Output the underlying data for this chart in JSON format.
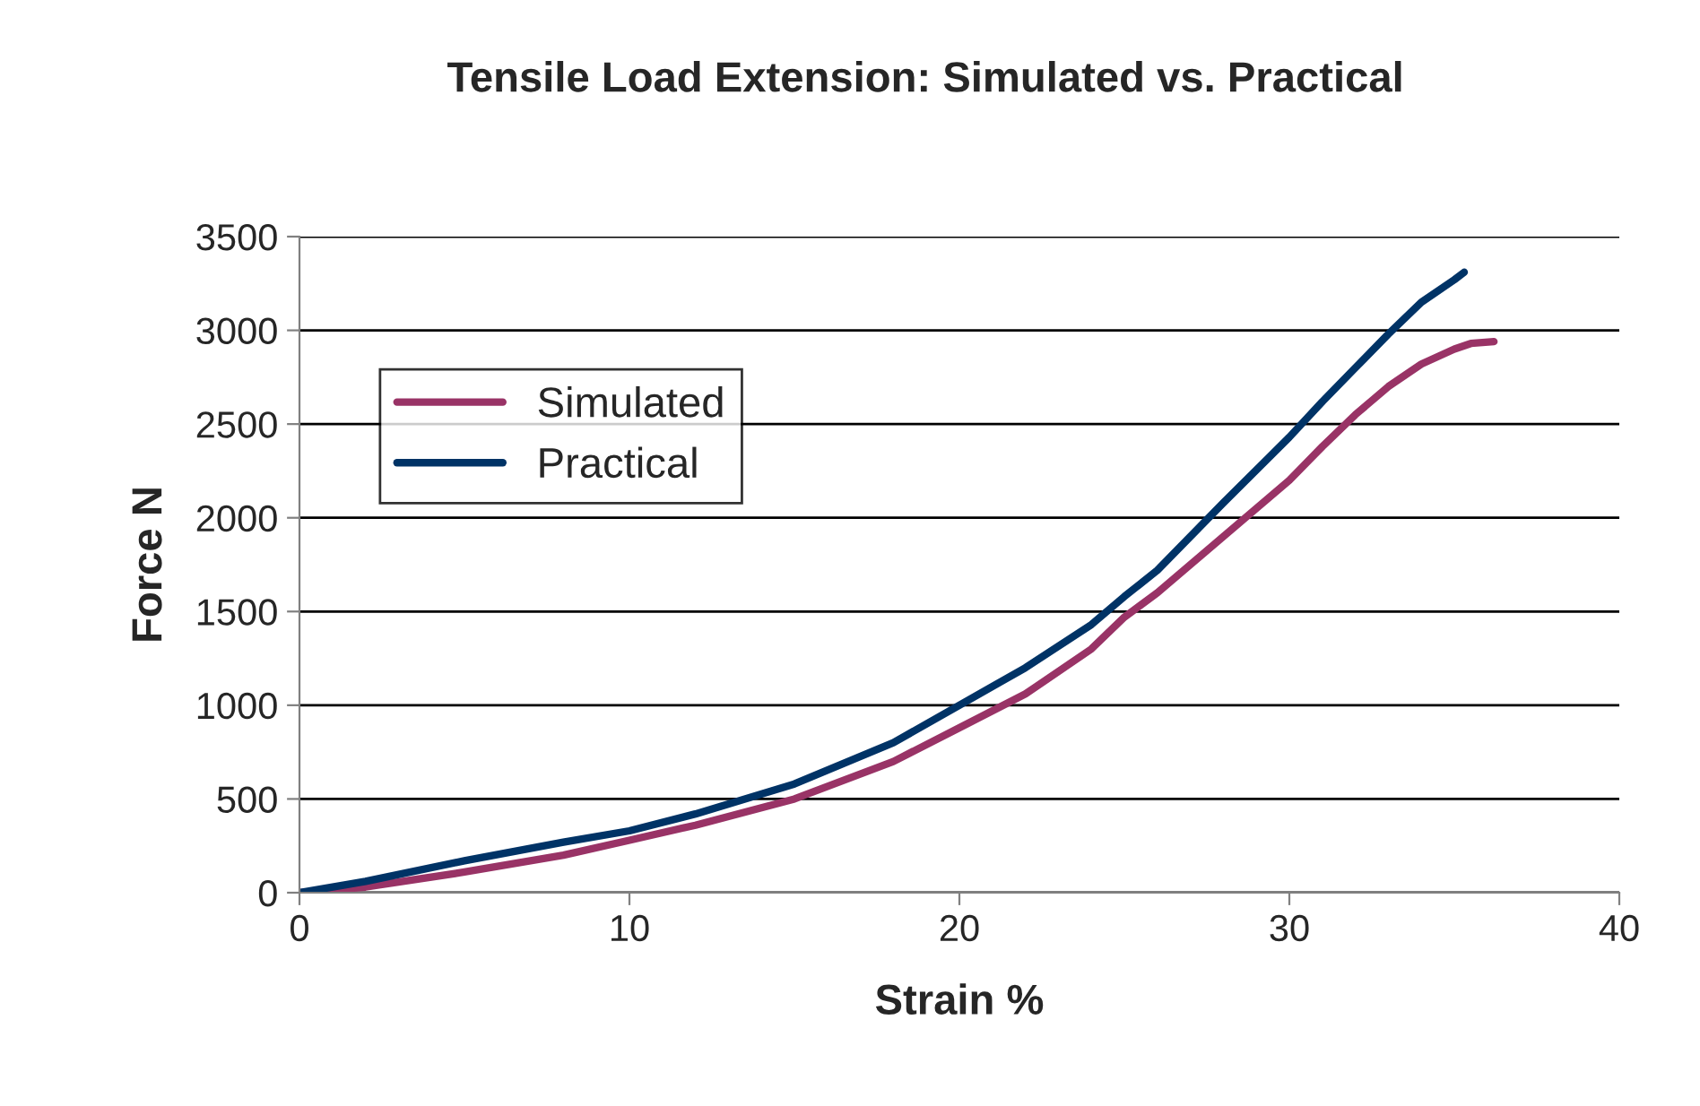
{
  "chart_data": {
    "type": "line",
    "title": "Tensile Load Extension: Simulated vs. Practical",
    "xlabel": "Strain %",
    "ylabel": "Force N",
    "xlim": [
      0,
      40
    ],
    "xticks": [
      0,
      10,
      20,
      30,
      40
    ],
    "ylim": [
      0,
      3500
    ],
    "yticks": [
      0,
      500,
      1000,
      1500,
      2000,
      2500,
      3000,
      3500
    ],
    "grid": "y",
    "legend": "top left",
    "marker": "none",
    "line_style": "solid",
    "series": [
      {
        "name": "Simulated",
        "color": "#993366",
        "x": [
          0,
          2,
          5,
          8,
          10,
          12,
          15,
          18,
          20,
          22,
          24,
          25,
          26,
          28,
          30,
          31,
          32,
          33,
          34,
          35,
          35.5,
          36.2
        ],
        "values": [
          0,
          30,
          110,
          200,
          280,
          360,
          500,
          700,
          880,
          1060,
          1300,
          1470,
          1600,
          1900,
          2200,
          2380,
          2550,
          2700,
          2820,
          2900,
          2930,
          2940
        ]
      },
      {
        "name": "Practical",
        "color": "#003366",
        "x": [
          0,
          2,
          5,
          8,
          10,
          12,
          15,
          18,
          20,
          22,
          24,
          25,
          26,
          28,
          30,
          31,
          32,
          33,
          34,
          35,
          35.3
        ],
        "values": [
          0,
          60,
          170,
          270,
          330,
          420,
          580,
          800,
          1000,
          1200,
          1430,
          1580,
          1720,
          2080,
          2430,
          2620,
          2800,
          2980,
          3150,
          3270,
          3310
        ]
      }
    ]
  }
}
